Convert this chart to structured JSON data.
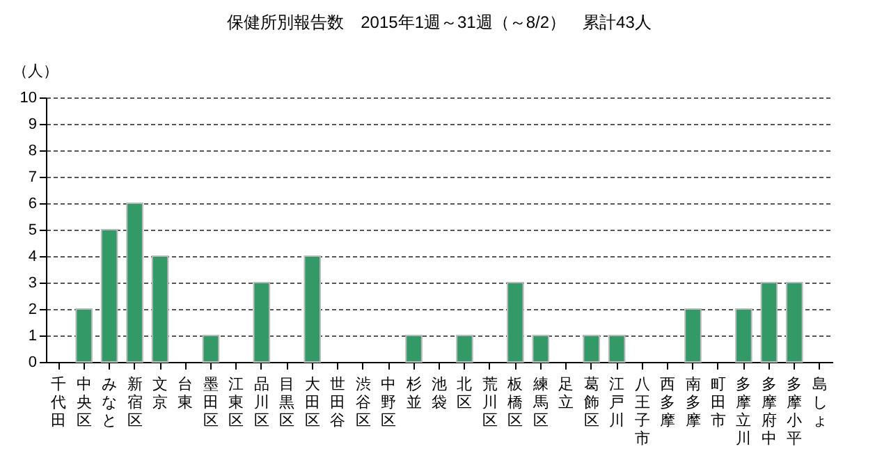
{
  "chart_data": {
    "type": "bar",
    "title": "保健所別報告数　2015年1週～31週（～8/2）　累計43人",
    "ylabel": "（人）",
    "categories": [
      "千代田",
      "中央区",
      "みなと",
      "新宿区",
      "文京",
      "台東",
      "墨田区",
      "江東区",
      "品川区",
      "目黒区",
      "大田区",
      "世田谷",
      "渋谷区",
      "中野区",
      "杉並",
      "池袋",
      "北区",
      "荒川区",
      "板橋区",
      "練馬区",
      "足立",
      "葛飾区",
      "江戸川",
      "八王子市",
      "西多摩",
      "南多摩",
      "町田市",
      "多摩立川",
      "多摩府中",
      "多摩小平",
      "島しょ"
    ],
    "values": [
      0,
      2,
      5,
      6,
      4,
      0,
      1,
      0,
      3,
      0,
      4,
      0,
      0,
      0,
      1,
      0,
      1,
      0,
      3,
      1,
      0,
      1,
      1,
      0,
      0,
      2,
      0,
      2,
      3,
      3,
      0
    ],
    "color": "#339966",
    "ylim": [
      0,
      10
    ],
    "yticks": [
      0,
      1,
      2,
      3,
      4,
      5,
      6,
      7,
      8,
      9,
      10
    ],
    "grid": "y"
  }
}
